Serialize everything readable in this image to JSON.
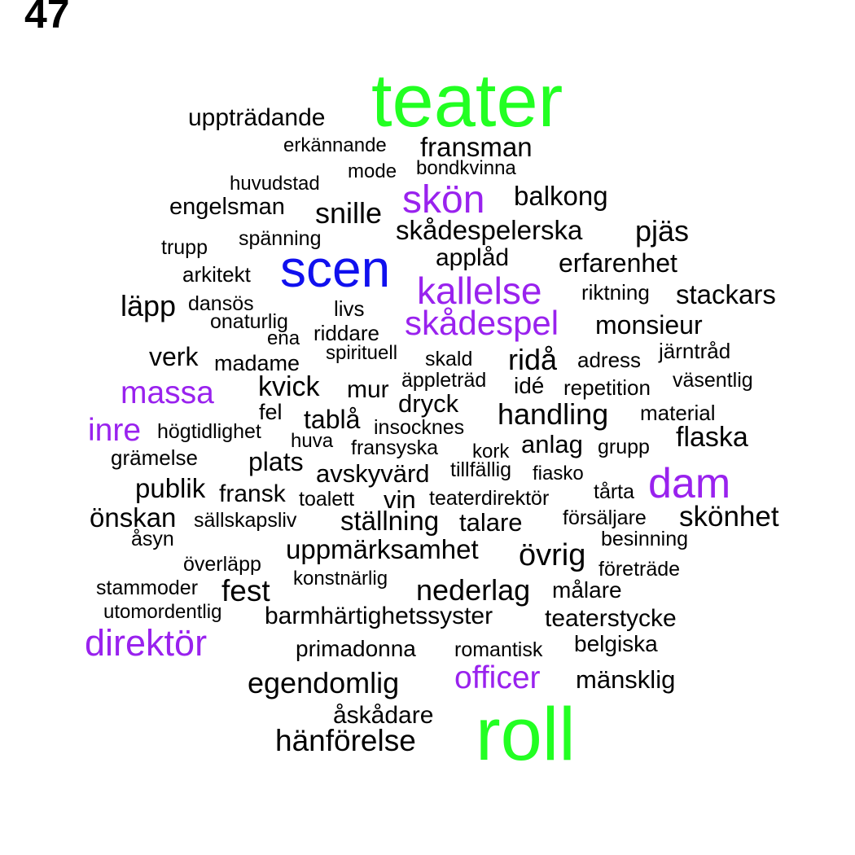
{
  "page_number": "47",
  "colors": {
    "black": "#000000",
    "green": "#22ff22",
    "blue": "#1010ee",
    "purple": "#9922ee"
  },
  "words": [
    {
      "text": "teater",
      "color": "green"
    },
    {
      "text": "roll",
      "color": "green"
    },
    {
      "text": "scen",
      "color": "blue"
    },
    {
      "text": "skön",
      "color": "purple"
    },
    {
      "text": "kallelse",
      "color": "purple"
    },
    {
      "text": "skådespel",
      "color": "purple"
    },
    {
      "text": "massa",
      "color": "purple"
    },
    {
      "text": "inre",
      "color": "purple"
    },
    {
      "text": "dam",
      "color": "purple"
    },
    {
      "text": "direktör",
      "color": "purple"
    },
    {
      "text": "officer",
      "color": "purple"
    },
    {
      "text": "uppträdande",
      "color": "black"
    },
    {
      "text": "erkännande",
      "color": "black"
    },
    {
      "text": "fransman",
      "color": "black"
    },
    {
      "text": "mode",
      "color": "black"
    },
    {
      "text": "bondkvinna",
      "color": "black"
    },
    {
      "text": "huvudstad",
      "color": "black"
    },
    {
      "text": "engelsman",
      "color": "black"
    },
    {
      "text": "snille",
      "color": "black"
    },
    {
      "text": "balkong",
      "color": "black"
    },
    {
      "text": "skådespelerska",
      "color": "black"
    },
    {
      "text": "pjäs",
      "color": "black"
    },
    {
      "text": "spänning",
      "color": "black"
    },
    {
      "text": "trupp",
      "color": "black"
    },
    {
      "text": "applåd",
      "color": "black"
    },
    {
      "text": "erfarenhet",
      "color": "black"
    },
    {
      "text": "arkitekt",
      "color": "black"
    },
    {
      "text": "riktning",
      "color": "black"
    },
    {
      "text": "stackars",
      "color": "black"
    },
    {
      "text": "läpp",
      "color": "black"
    },
    {
      "text": "dansös",
      "color": "black"
    },
    {
      "text": "livs",
      "color": "black"
    },
    {
      "text": "onaturlig",
      "color": "black"
    },
    {
      "text": "monsieur",
      "color": "black"
    },
    {
      "text": "ena",
      "color": "black"
    },
    {
      "text": "riddare",
      "color": "black"
    },
    {
      "text": "järntråd",
      "color": "black"
    },
    {
      "text": "verk",
      "color": "black"
    },
    {
      "text": "madame",
      "color": "black"
    },
    {
      "text": "spirituell",
      "color": "black"
    },
    {
      "text": "skald",
      "color": "black"
    },
    {
      "text": "ridå",
      "color": "black"
    },
    {
      "text": "adress",
      "color": "black"
    },
    {
      "text": "äppleträd",
      "color": "black"
    },
    {
      "text": "väsentlig",
      "color": "black"
    },
    {
      "text": "kvick",
      "color": "black"
    },
    {
      "text": "mur",
      "color": "black"
    },
    {
      "text": "idé",
      "color": "black"
    },
    {
      "text": "repetition",
      "color": "black"
    },
    {
      "text": "dryck",
      "color": "black"
    },
    {
      "text": "fel",
      "color": "black"
    },
    {
      "text": "material",
      "color": "black"
    },
    {
      "text": "tablå",
      "color": "black"
    },
    {
      "text": "handling",
      "color": "black"
    },
    {
      "text": "insocknes",
      "color": "black"
    },
    {
      "text": "högtidlighet",
      "color": "black"
    },
    {
      "text": "flaska",
      "color": "black"
    },
    {
      "text": "huva",
      "color": "black"
    },
    {
      "text": "anlag",
      "color": "black"
    },
    {
      "text": "fransyska",
      "color": "black"
    },
    {
      "text": "kork",
      "color": "black"
    },
    {
      "text": "grupp",
      "color": "black"
    },
    {
      "text": "grämelse",
      "color": "black"
    },
    {
      "text": "plats",
      "color": "black"
    },
    {
      "text": "avskyvärd",
      "color": "black"
    },
    {
      "text": "tillfällig",
      "color": "black"
    },
    {
      "text": "fiasko",
      "color": "black"
    },
    {
      "text": "publik",
      "color": "black"
    },
    {
      "text": "fransk",
      "color": "black"
    },
    {
      "text": "toalett",
      "color": "black"
    },
    {
      "text": "vin",
      "color": "black"
    },
    {
      "text": "teaterdirektör",
      "color": "black"
    },
    {
      "text": "tårta",
      "color": "black"
    },
    {
      "text": "önskan",
      "color": "black"
    },
    {
      "text": "sällskapsliv",
      "color": "black"
    },
    {
      "text": "ställning",
      "color": "black"
    },
    {
      "text": "talare",
      "color": "black"
    },
    {
      "text": "försäljare",
      "color": "black"
    },
    {
      "text": "skönhet",
      "color": "black"
    },
    {
      "text": "åsyn",
      "color": "black"
    },
    {
      "text": "besinning",
      "color": "black"
    },
    {
      "text": "uppmärksamhet",
      "color": "black"
    },
    {
      "text": "övrig",
      "color": "black"
    },
    {
      "text": "överläpp",
      "color": "black"
    },
    {
      "text": "företräde",
      "color": "black"
    },
    {
      "text": "konstnärlig",
      "color": "black"
    },
    {
      "text": "stammoder",
      "color": "black"
    },
    {
      "text": "fest",
      "color": "black"
    },
    {
      "text": "nederlag",
      "color": "black"
    },
    {
      "text": "målare",
      "color": "black"
    },
    {
      "text": "utomordentlig",
      "color": "black"
    },
    {
      "text": "barmhärtighetssyster",
      "color": "black"
    },
    {
      "text": "teaterstycke",
      "color": "black"
    },
    {
      "text": "belgiska",
      "color": "black"
    },
    {
      "text": "primadonna",
      "color": "black"
    },
    {
      "text": "romantisk",
      "color": "black"
    },
    {
      "text": "egendomlig",
      "color": "black"
    },
    {
      "text": "mänsklig",
      "color": "black"
    },
    {
      "text": "åskådare",
      "color": "black"
    },
    {
      "text": "hänförelse",
      "color": "black"
    }
  ]
}
